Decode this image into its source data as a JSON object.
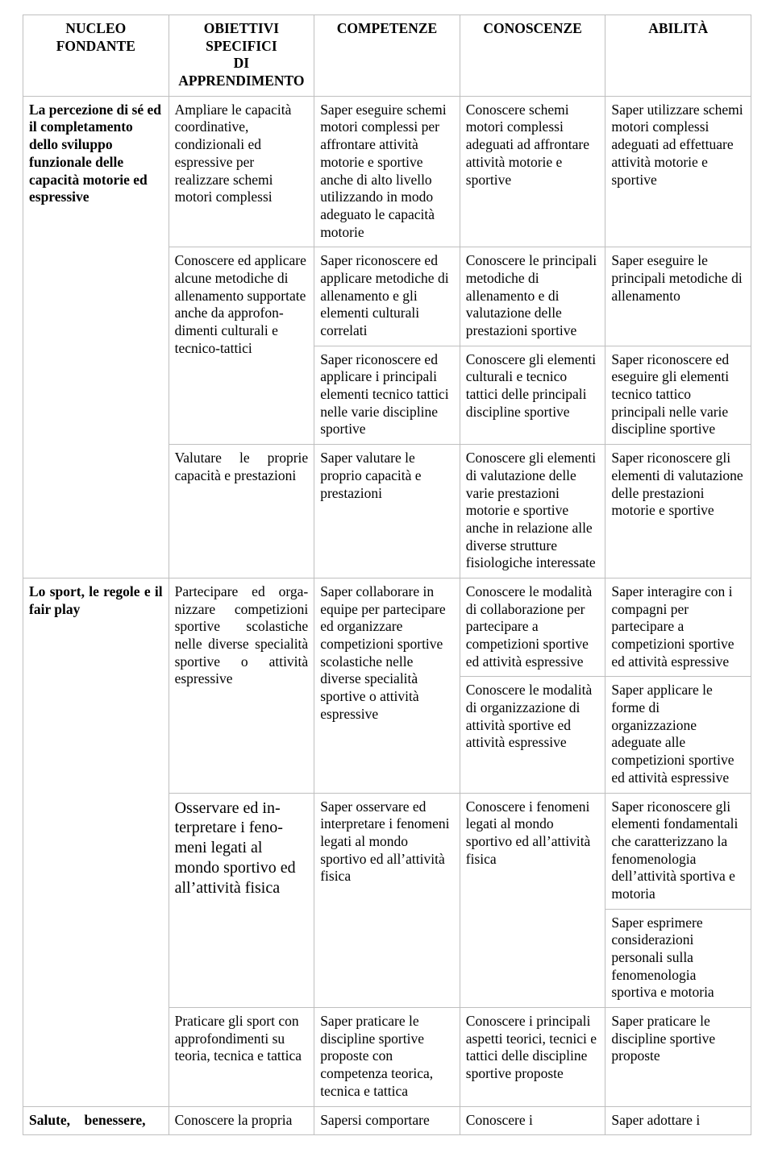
{
  "headers": {
    "col1": "NUCLEO FONDANTE",
    "col2_l1": "OBIETTIVI SPECIFICI",
    "col2_l2": "DI",
    "col2_l3": "APPRENDIMENTO",
    "col3": "COMPETENZE",
    "col4": "CONOSCENZE",
    "col5": "ABILITÀ"
  },
  "nucleo1": {
    "title": "La percezione di sé ed il completamento dello sviluppo funzionale delle capacità motorie ed espressive",
    "rows": {
      "r1": {
        "obj": "Ampliare le capacità coordinative, condizionali ed espressive per realizzare schemi motori complessi",
        "comp": "Saper eseguire schemi motori complessi per affrontare attività motorie e sportive anche di alto livello utilizzando in modo adeguato le capacità motorie",
        "con": "Conoscere schemi motori complessi adeguati ad affrontare attività motorie e sportive",
        "abi": "Saper utilizzare schemi motori complessi adeguati ad effettuare attività motorie e sportive"
      },
      "r2": {
        "obj": "Conoscere ed applica­re alcune metodiche di allenamento supporta­te anche da approfon­dimenti culturali e tecnico-tattici",
        "comp_a": "Saper riconoscere ed applicare metodiche di allenamento e gli elementi culturali correlati",
        "con_a": "Conoscere le principali metodiche di allenamento e di valutazione delle prestazioni sportive",
        "abi_a": "Saper eseguire le principali metodiche di allenamento",
        "comp_b": "Saper riconoscere ed applicare i principali elementi tecnico tattici nelle varie discipline sportive",
        "con_b": "Conoscere gli elementi culturali e tecnico tattici delle principali discipline sportive",
        "abi_b": "Saper riconoscere ed eseguire gli elementi tecnico tattico principali nelle varie discipline sportive"
      },
      "r3": {
        "obj": "Valutare le proprie capacità e prestazioni",
        "comp": "Saper valutare le proprio capacità e prestazioni",
        "con": "Conoscere gli elementi di valutazione delle varie prestazioni motorie e sportive anche in relazione alle diverse strutture fisiologiche interessate",
        "abi": "Saper riconoscere gli elementi di valutazione delle prestazioni motorie e sportive"
      }
    }
  },
  "nucleo2": {
    "title": "Lo sport, le regole e il fair play",
    "rows": {
      "r1": {
        "obj": "Partecipare ed orga­nizzare competizioni sportive scolastiche nelle diverse specialità sportive o attività espressive",
        "comp": "Saper collaborare in equipe per partecipare ed organizzare competizioni sportive scolastiche nelle diverse specialità sportive o attività espressive",
        "con_a": "Conoscere le modalità di collaborazione per partecipare a competizioni sportive ed attività espressive",
        "abi_a": "Saper interagire con i compagni per partecipare a competizioni sportive ed attività espressive",
        "con_b": "Conoscere le modalità di organizzazione di attività sportive ed attività espressive",
        "abi_b": "Saper applicare le forme di organizzazione adeguate alle competizioni sportive ed attività espressive"
      },
      "r2": {
        "obj": "Osservare ed in­terpretare i feno­meni legati al mondo sportivo ed all’attività fisica",
        "comp": "Saper osservare ed interpretare i fenomeni legati al mondo sportivo ed all’attività fisica",
        "con": "Conoscere i fenomeni legati al mondo sportivo ed all’attività fisica",
        "abi_a": "Saper riconoscere gli elementi fondamentali che caratterizzano la fenomenologia dell’attività sportiva e motoria",
        "abi_b": "Saper esprimere considerazioni personali sulla fenomenologia sportiva e motoria"
      },
      "r3": {
        "obj": "Praticare gli sport con approfondimenti su teoria, tecnica e tattica",
        "comp": "Saper praticare le discipline sportive proposte con competenza teorica, tecnica e tattica",
        "con": "Conoscere i principali aspetti teorici, tecnici e tattici delle discipline sportive proposte",
        "abi": "Saper praticare le discipline sportive proposte"
      }
    }
  },
  "nucleo3": {
    "title_frag": "Salute, benessere,",
    "obj_frag": "Conoscere la propria",
    "comp_frag": "Sapersi comportare",
    "con_frag": "Conoscere i",
    "abi_frag": "Saper adottare i"
  }
}
